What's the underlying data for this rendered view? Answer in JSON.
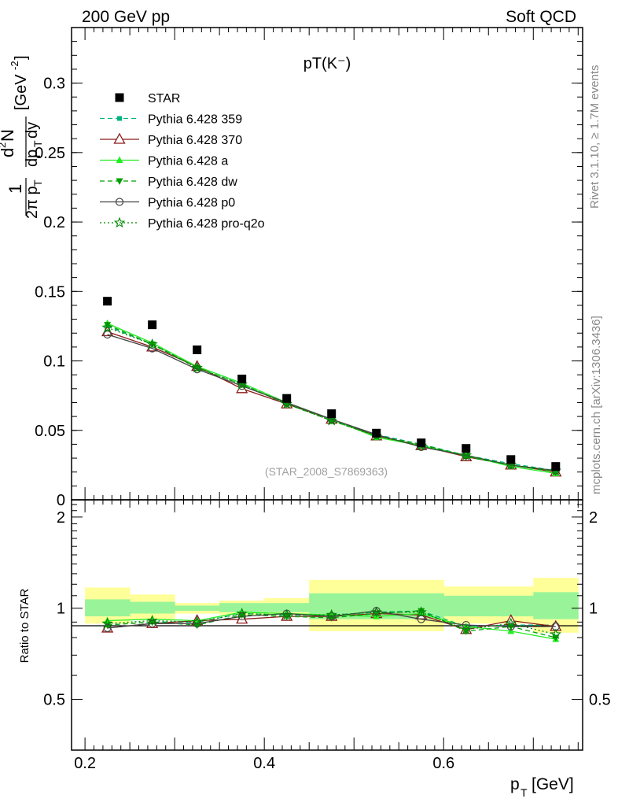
{
  "header": {
    "left": "200 GeV pp",
    "right": "Soft QCD"
  },
  "side": {
    "rivet": "Rivet 3.1.10, ≥ 1.7M events",
    "mcplots": "mcplots.cern.ch [arXiv:1306.3436]"
  },
  "colors": {
    "star": "#000000",
    "p359": "#00b480",
    "p370": "#8b1a1a",
    "pa": "#22ee22",
    "pdw": "#00a000",
    "pp0": "#444444",
    "pq2o": "#008800",
    "band_inner": "#99f499",
    "band_outer": "#ffff99"
  },
  "chart_data": [
    {
      "type": "scatter",
      "title": "pT(K⁻)",
      "watermark": "(STAR_2008_S7869363)",
      "ylabel": "1/(2π p_T) d²N/(dp_T dy) [GeV⁻²]",
      "xlim": [
        0.185,
        0.755
      ],
      "ylim": [
        0,
        0.34
      ],
      "yticks": [
        0,
        0.05,
        0.1,
        0.15,
        0.2,
        0.25,
        0.3
      ],
      "ytick_labels": [
        "0",
        "0.05",
        "0.1",
        "0.15",
        "0.2",
        "0.25",
        "0.3"
      ],
      "x": [
        0.225,
        0.275,
        0.325,
        0.375,
        0.425,
        0.475,
        0.525,
        0.575,
        0.625,
        0.675,
        0.725
      ],
      "series": [
        {
          "name": "STAR",
          "key": "star",
          "marker": "square",
          "line": "none",
          "values": [
            0.143,
            0.126,
            0.108,
            0.087,
            0.073,
            0.062,
            0.048,
            0.041,
            0.037,
            0.029,
            0.024
          ]
        },
        {
          "name": "Pythia 6.428 359",
          "key": "p359",
          "marker": "smallsquare",
          "line": "dashed",
          "values": [
            0.125,
            0.112,
            0.096,
            0.084,
            0.07,
            0.058,
            0.047,
            0.04,
            0.032,
            0.026,
            0.021
          ]
        },
        {
          "name": "Pythia 6.428 370",
          "key": "p370",
          "marker": "triangle-open",
          "line": "solid",
          "values": [
            0.121,
            0.11,
            0.096,
            0.08,
            0.069,
            0.058,
            0.046,
            0.039,
            0.031,
            0.025,
            0.02
          ]
        },
        {
          "name": "Pythia 6.428 a",
          "key": "pa",
          "marker": "triangle",
          "line": "solid",
          "values": [
            0.127,
            0.113,
            0.096,
            0.084,
            0.07,
            0.058,
            0.045,
            0.039,
            0.032,
            0.024,
            0.019
          ]
        },
        {
          "name": "Pythia 6.428 dw",
          "key": "pdw",
          "marker": "triangle-down",
          "line": "dashed",
          "values": [
            0.126,
            0.112,
            0.095,
            0.083,
            0.069,
            0.057,
            0.046,
            0.04,
            0.031,
            0.025,
            0.02
          ]
        },
        {
          "name": "Pythia 6.428 p0",
          "key": "pp0",
          "marker": "circle-open",
          "line": "solid",
          "values": [
            0.119,
            0.109,
            0.094,
            0.082,
            0.07,
            0.058,
            0.047,
            0.038,
            0.032,
            0.025,
            0.021
          ]
        },
        {
          "name": "Pythia 6.428 pro-q2o",
          "key": "pq2o",
          "marker": "star-open",
          "line": "dotted",
          "values": [
            0.124,
            0.112,
            0.095,
            0.083,
            0.069,
            0.057,
            0.046,
            0.039,
            0.032,
            0.025,
            0.021
          ]
        }
      ]
    },
    {
      "type": "line",
      "ylabel": "Ratio to STAR",
      "xlabel": "p_T [GeV]",
      "xlim": [
        0.185,
        0.755
      ],
      "ylim": [
        0.34,
        2.28
      ],
      "log_y": true,
      "xticks": [
        0.2,
        0.4,
        0.6
      ],
      "xtick_labels": [
        "0.2",
        "0.4",
        "0.6"
      ],
      "yticks": [
        0.5,
        1,
        2
      ],
      "ytick_labels": [
        "0.5",
        "1",
        "2"
      ],
      "x": [
        0.225,
        0.275,
        0.325,
        0.375,
        0.425,
        0.475,
        0.525,
        0.575,
        0.625,
        0.675,
        0.725
      ],
      "bins": [
        [
          0.2,
          0.25
        ],
        [
          0.25,
          0.3
        ],
        [
          0.3,
          0.35
        ],
        [
          0.35,
          0.4
        ],
        [
          0.4,
          0.45
        ],
        [
          0.45,
          0.5
        ],
        [
          0.5,
          0.55
        ],
        [
          0.55,
          0.6
        ],
        [
          0.6,
          0.65
        ],
        [
          0.65,
          0.7
        ],
        [
          0.7,
          0.75
        ]
      ],
      "stat_band": [
        [
          0.94,
          1.07
        ],
        [
          0.96,
          1.05
        ],
        [
          0.98,
          1.02
        ],
        [
          0.97,
          1.04
        ],
        [
          0.97,
          1.04
        ],
        [
          0.92,
          1.12
        ],
        [
          0.92,
          1.12
        ],
        [
          0.92,
          1.12
        ],
        [
          0.94,
          1.1
        ],
        [
          0.94,
          1.1
        ],
        [
          0.92,
          1.13
        ]
      ],
      "total_band": [
        [
          0.89,
          1.17
        ],
        [
          0.92,
          1.11
        ],
        [
          0.96,
          1.04
        ],
        [
          0.95,
          1.06
        ],
        [
          0.95,
          1.08
        ],
        [
          0.84,
          1.24
        ],
        [
          0.84,
          1.24
        ],
        [
          0.84,
          1.24
        ],
        [
          0.89,
          1.18
        ],
        [
          0.89,
          1.18
        ],
        [
          0.83,
          1.26
        ]
      ],
      "series": [
        {
          "key": "p359",
          "marker": "smallsquare",
          "line": "dashed",
          "values": [
            0.88,
            0.9,
            0.9,
            0.96,
            0.95,
            0.95,
            0.97,
            0.98,
            0.87,
            0.88,
            0.88
          ]
        },
        {
          "key": "p370",
          "marker": "triangle-open",
          "line": "solid",
          "values": [
            0.86,
            0.89,
            0.91,
            0.92,
            0.94,
            0.94,
            0.96,
            0.95,
            0.85,
            0.91,
            0.87
          ]
        },
        {
          "key": "pa",
          "marker": "triangle",
          "line": "solid",
          "values": [
            0.91,
            0.92,
            0.91,
            0.97,
            0.96,
            0.95,
            0.94,
            0.96,
            0.87,
            0.84,
            0.79
          ]
        },
        {
          "key": "pdw",
          "marker": "triangle-down",
          "line": "dashed",
          "values": [
            0.88,
            0.9,
            0.88,
            0.95,
            0.94,
            0.93,
            0.96,
            0.98,
            0.84,
            0.87,
            0.8
          ]
        },
        {
          "key": "pp0",
          "marker": "circle-open",
          "line": "solid",
          "values": [
            0.86,
            0.89,
            0.89,
            0.94,
            0.96,
            0.94,
            0.98,
            0.92,
            0.88,
            0.87,
            0.87
          ]
        },
        {
          "key": "pq2o",
          "marker": "star-open",
          "line": "dotted",
          "values": [
            0.89,
            0.91,
            0.9,
            0.96,
            0.95,
            0.95,
            0.97,
            0.97,
            0.85,
            0.89,
            0.82
          ]
        }
      ]
    }
  ]
}
